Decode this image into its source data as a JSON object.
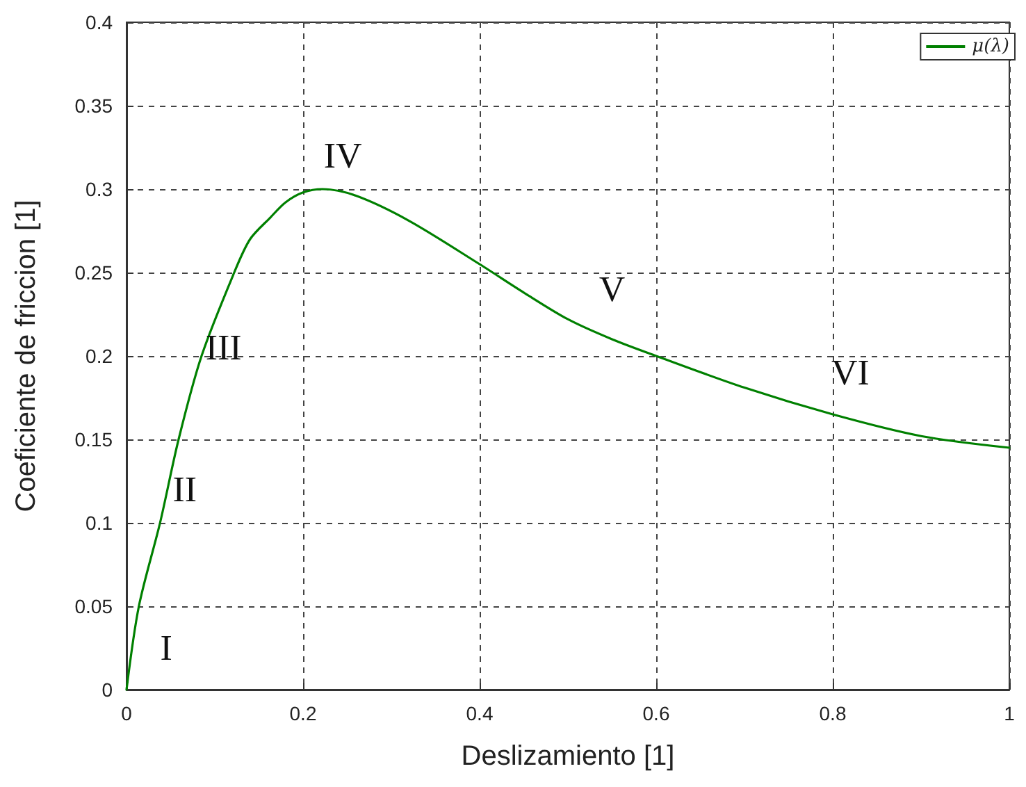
{
  "chart_data": {
    "type": "line",
    "xlabel": "Deslizamiento [1]",
    "ylabel": "Coeficiente de friccion [1]",
    "series": [
      {
        "name": "μ(λ)",
        "color": "#008000",
        "x": [
          0,
          0.014,
          0.038,
          0.059,
          0.085,
          0.122,
          0.14,
          0.163,
          0.18,
          0.2,
          0.222,
          0.26,
          0.32,
          0.4,
          0.45,
          0.5,
          0.55,
          0.6,
          0.7,
          0.8,
          0.9,
          1
        ],
        "values": [
          0,
          0.05,
          0.1,
          0.15,
          0.2,
          0.25,
          0.27,
          0.283,
          0.292,
          0.298,
          0.3,
          0.296,
          0.281,
          0.255,
          0.238,
          0.222,
          0.21,
          0.2,
          0.181,
          0.165,
          0.152,
          0.145
        ]
      }
    ],
    "xlim": [
      0,
      1
    ],
    "xticks": [
      0,
      0.2,
      0.4,
      0.6,
      0.8,
      1
    ],
    "ylim": [
      0,
      0.4
    ],
    "yticks": [
      0,
      0.05,
      0.1,
      0.15,
      0.2,
      0.25,
      0.3,
      0.35,
      0.4
    ],
    "grid": true,
    "legend": "top right",
    "marker": "none",
    "line_style": "solid",
    "annotations": [
      "I",
      "II",
      "III",
      "IV",
      "V",
      "VI"
    ]
  }
}
